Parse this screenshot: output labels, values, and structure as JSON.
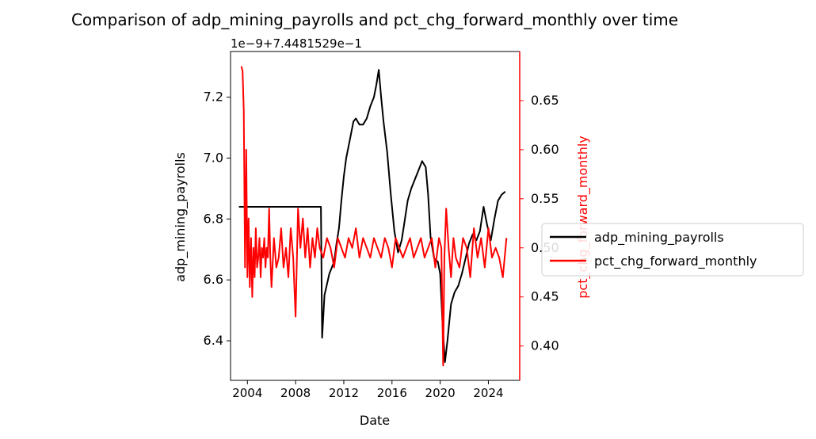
{
  "chart_data": {
    "type": "line",
    "title": "Comparison of adp_mining_payrolls and pct_chg_forward_monthly over time",
    "xlabel": "Date",
    "y_left": {
      "label": "adp_mining_payrolls",
      "offset_text": "1e−9+7.4481529e−1",
      "ticks": [
        "6.4",
        "6.6",
        "6.8",
        "7.0",
        "7.2"
      ],
      "tick_values": [
        6.4,
        6.6,
        6.8,
        7.0,
        7.2
      ],
      "lim": [
        6.27,
        7.35
      ],
      "color": "#000000"
    },
    "y_right": {
      "label": "pct_chg_forward_monthly",
      "ticks": [
        "0.40",
        "0.45",
        "0.50",
        "0.55",
        "0.60",
        "0.65"
      ],
      "tick_values": [
        0.4,
        0.45,
        0.5,
        0.55,
        0.6,
        0.65
      ],
      "lim": [
        0.365,
        0.7
      ],
      "color": "#ff0000"
    },
    "x_ticks": [
      "2004",
      "2008",
      "2012",
      "2016",
      "2020",
      "2024"
    ],
    "x_tick_values": [
      2004,
      2008,
      2012,
      2016,
      2020,
      2024
    ],
    "xlim": [
      2002.6,
      2026.6
    ],
    "legend": {
      "placement": "outside-right",
      "entries": [
        "adp_mining_payrolls",
        "pct_chg_forward_monthly"
      ]
    },
    "grid": false,
    "series": [
      {
        "name": "adp_mining_payrolls",
        "axis": "left",
        "color": "#000000",
        "x": [
          2003.3,
          2010.1,
          2010.2,
          2010.4,
          2010.8,
          2011.2,
          2011.4,
          2011.6,
          2011.8,
          2012.0,
          2012.2,
          2012.5,
          2012.8,
          2013.0,
          2013.3,
          2013.6,
          2013.9,
          2014.2,
          2014.5,
          2014.7,
          2014.9,
          2015.1,
          2015.3,
          2015.6,
          2015.9,
          2016.2,
          2016.5,
          2016.8,
          2017.0,
          2017.3,
          2017.6,
          2017.9,
          2018.2,
          2018.5,
          2018.8,
          2019.0,
          2019.2,
          2019.5,
          2019.8,
          2020.0,
          2020.2,
          2020.4,
          2020.6,
          2020.9,
          2021.2,
          2021.5,
          2021.8,
          2022.1,
          2022.4,
          2022.7,
          2023.0,
          2023.3,
          2023.6,
          2023.9,
          2024.2,
          2024.5,
          2024.8,
          2025.1,
          2025.4
        ],
        "y": [
          6.84,
          6.84,
          6.41,
          6.55,
          6.62,
          6.66,
          6.72,
          6.77,
          6.86,
          6.94,
          7.0,
          7.06,
          7.12,
          7.13,
          7.11,
          7.11,
          7.13,
          7.17,
          7.2,
          7.24,
          7.29,
          7.2,
          7.12,
          7.02,
          6.88,
          6.76,
          6.69,
          6.73,
          6.78,
          6.86,
          6.9,
          6.93,
          6.96,
          6.99,
          6.97,
          6.88,
          6.74,
          6.67,
          6.66,
          6.62,
          6.45,
          6.33,
          6.4,
          6.52,
          6.56,
          6.58,
          6.62,
          6.67,
          6.72,
          6.75,
          6.73,
          6.76,
          6.84,
          6.78,
          6.73,
          6.8,
          6.86,
          6.88,
          6.89
        ]
      },
      {
        "name": "pct_chg_forward_monthly",
        "axis": "right",
        "color": "#ff0000",
        "x": [
          2003.5,
          2003.6,
          2003.7,
          2003.8,
          2003.9,
          2004.0,
          2004.1,
          2004.2,
          2004.3,
          2004.4,
          2004.5,
          2004.6,
          2004.7,
          2004.8,
          2004.9,
          2005.0,
          2005.1,
          2005.2,
          2005.3,
          2005.4,
          2005.5,
          2005.6,
          2005.7,
          2005.8,
          2005.9,
          2006.0,
          2006.2,
          2006.4,
          2006.6,
          2006.8,
          2007.0,
          2007.2,
          2007.4,
          2007.6,
          2007.8,
          2008.0,
          2008.2,
          2008.4,
          2008.6,
          2008.8,
          2009.0,
          2009.2,
          2009.4,
          2009.6,
          2009.8,
          2010.0,
          2010.3,
          2010.6,
          2010.9,
          2011.2,
          2011.5,
          2011.8,
          2012.1,
          2012.4,
          2012.7,
          2013.0,
          2013.3,
          2013.6,
          2013.9,
          2014.2,
          2014.5,
          2014.8,
          2015.1,
          2015.4,
          2015.7,
          2016.0,
          2016.3,
          2016.6,
          2016.9,
          2017.2,
          2017.5,
          2017.8,
          2018.1,
          2018.4,
          2018.7,
          2019.0,
          2019.3,
          2019.6,
          2019.9,
          2020.1,
          2020.25,
          2020.35,
          2020.5,
          2020.7,
          2020.9,
          2021.1,
          2021.3,
          2021.6,
          2021.9,
          2022.2,
          2022.5,
          2022.8,
          2023.1,
          2023.4,
          2023.7,
          2024.0,
          2024.3,
          2024.6,
          2024.9,
          2025.2,
          2025.5
        ],
        "y": [
          0.685,
          0.68,
          0.64,
          0.48,
          0.6,
          0.47,
          0.53,
          0.46,
          0.51,
          0.45,
          0.5,
          0.47,
          0.52,
          0.48,
          0.49,
          0.51,
          0.47,
          0.5,
          0.49,
          0.51,
          0.48,
          0.5,
          0.49,
          0.54,
          0.49,
          0.46,
          0.51,
          0.48,
          0.49,
          0.52,
          0.48,
          0.5,
          0.47,
          0.52,
          0.49,
          0.43,
          0.54,
          0.5,
          0.53,
          0.49,
          0.52,
          0.48,
          0.51,
          0.49,
          0.52,
          0.5,
          0.49,
          0.51,
          0.5,
          0.48,
          0.51,
          0.5,
          0.49,
          0.51,
          0.5,
          0.52,
          0.49,
          0.51,
          0.5,
          0.49,
          0.51,
          0.5,
          0.49,
          0.51,
          0.5,
          0.48,
          0.51,
          0.5,
          0.49,
          0.5,
          0.51,
          0.49,
          0.5,
          0.51,
          0.49,
          0.5,
          0.51,
          0.48,
          0.51,
          0.5,
          0.38,
          0.49,
          0.54,
          0.5,
          0.47,
          0.51,
          0.49,
          0.48,
          0.51,
          0.5,
          0.47,
          0.52,
          0.49,
          0.51,
          0.48,
          0.52,
          0.49,
          0.5,
          0.49,
          0.47,
          0.51
        ]
      }
    ]
  }
}
